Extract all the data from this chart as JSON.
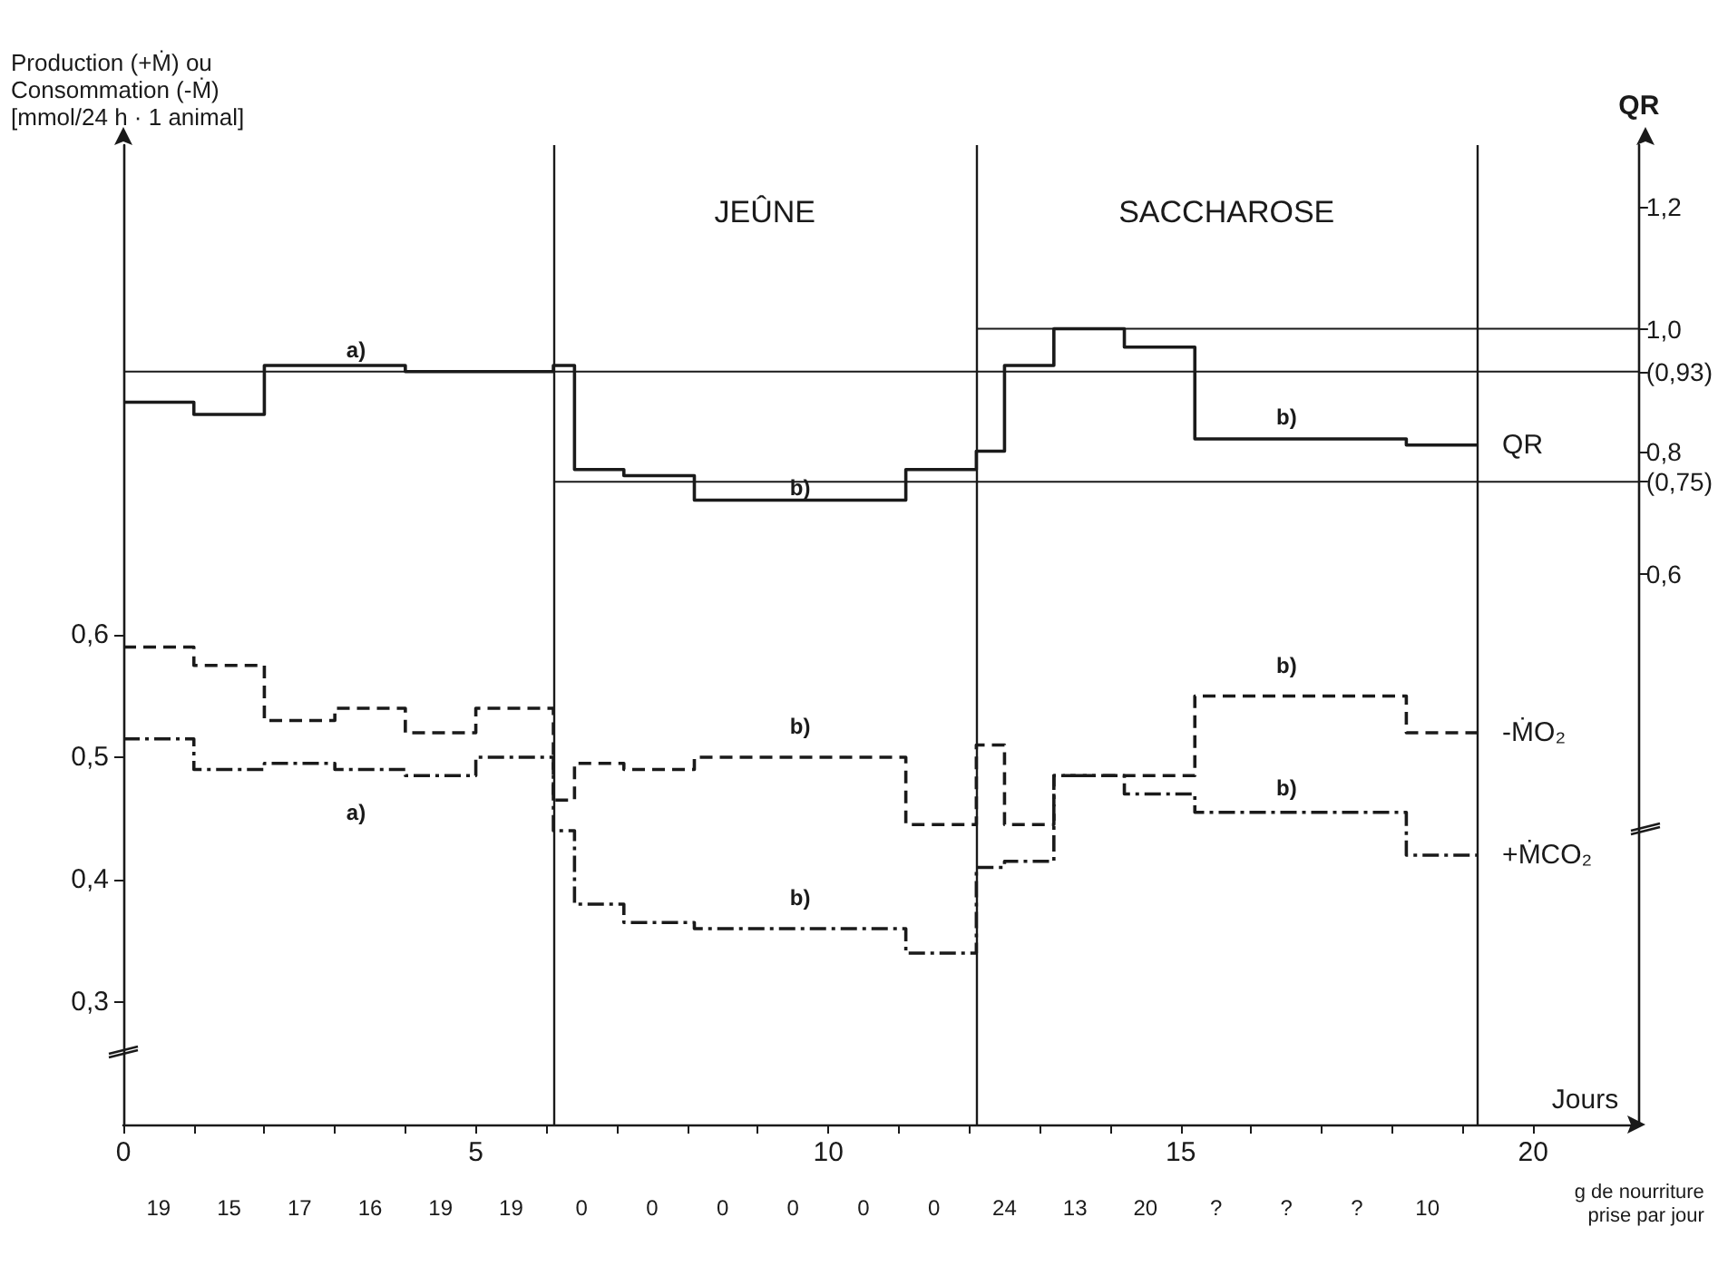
{
  "chart_data": {
    "type": "step",
    "ylabel": "Production (+Ṁ) ou\nConsommation (-Ṁ)\n[mmol/24 h · 1 animal]",
    "y2label": "QR",
    "xlabel": "Jours",
    "xlim": [
      0,
      21.5
    ],
    "xticks": [
      0,
      {
        "value": 1,
        "label": null
      },
      {
        "value": 2,
        "label": null
      },
      {
        "value": 3,
        "label": null
      },
      {
        "value": 4,
        "label": null
      },
      5,
      {
        "value": 6,
        "label": null
      },
      {
        "value": 7,
        "label": null
      },
      {
        "value": 8,
        "label": null
      },
      {
        "value": 9,
        "label": null
      },
      10,
      {
        "value": 11,
        "label": null
      },
      {
        "value": 12,
        "label": null
      },
      {
        "value": 13,
        "label": null
      },
      {
        "value": 14,
        "label": null
      },
      15,
      {
        "value": 16,
        "label": null
      },
      {
        "value": 17,
        "label": null
      },
      {
        "value": 18,
        "label": null
      },
      {
        "value": 19,
        "label": null
      },
      20
    ],
    "ylim": [
      0.2,
      1.0
    ],
    "yticks": [
      {
        "value": 0.3,
        "label": "0,3"
      },
      {
        "value": 0.4,
        "label": "0,4"
      },
      {
        "value": 0.5,
        "label": "0,5"
      },
      {
        "value": 0.6,
        "label": "0,6"
      }
    ],
    "y2lim": [
      -0.3,
      1.3
    ],
    "y2ticks": [
      {
        "value": 0.6,
        "label": "0,6"
      },
      {
        "value": 0.75,
        "label": "(0,75)"
      },
      {
        "value": 0.8,
        "label": "0,8"
      },
      {
        "value": 0.93,
        "label": "(0,93)"
      },
      {
        "value": 1.0,
        "label": "1,0"
      },
      {
        "value": 1.2,
        "label": "1,2"
      }
    ],
    "grid": false,
    "legend": false,
    "marker": "none",
    "series": [
      {
        "name": "QR",
        "color": "#1a1a1a",
        "axis": "y2",
        "line_style": "solid",
        "x": [
          0,
          1,
          2,
          3,
          4,
          5,
          6.1,
          6.4,
          7.1,
          8.1,
          11.1,
          12.1,
          12.5,
          13.2,
          14.2,
          15.2,
          18.2,
          19.2
        ],
        "values": [
          0.88,
          0.86,
          0.94,
          0.94,
          0.93,
          0.93,
          0.94,
          0.77,
          0.76,
          0.72,
          0.77,
          0.8,
          0.94,
          1.0,
          0.97,
          0.82,
          0.81,
          0.81
        ]
      },
      {
        "name": "-ṀO₂",
        "color": "#1a1a1a",
        "line_style": "dashed",
        "x": [
          0,
          1,
          2,
          3,
          4,
          5,
          6.1,
          6.4,
          7.1,
          8.1,
          11.1,
          12.1,
          12.5,
          13.2,
          14.2,
          15.2,
          18.2,
          19.2
        ],
        "values": [
          0.59,
          0.575,
          0.53,
          0.54,
          0.52,
          0.54,
          0.465,
          0.495,
          0.49,
          0.5,
          0.445,
          0.51,
          0.445,
          0.485,
          0.485,
          0.55,
          0.52,
          0.52
        ]
      },
      {
        "name": "+ṀCO₂",
        "color": "#1a1a1a",
        "line_style": "dashdot",
        "x": [
          0,
          1,
          2,
          3,
          4,
          5,
          6.1,
          6.4,
          7.1,
          8.1,
          11.1,
          12.1,
          12.5,
          13.2,
          14.2,
          15.2,
          18.2,
          19.2
        ],
        "values": [
          0.515,
          0.49,
          0.495,
          0.49,
          0.485,
          0.5,
          0.44,
          0.38,
          0.365,
          0.36,
          0.34,
          0.41,
          0.415,
          0.485,
          0.47,
          0.455,
          0.42,
          0.42
        ]
      },
      {
        "type": "line",
        "color": "#1a1a1a",
        "axis": "y2",
        "line_style": "solid",
        "x": [
          0,
          21.5
        ],
        "values": [
          0.93,
          0.93
        ]
      },
      {
        "type": "line",
        "color": "#1a1a1a",
        "axis": "y2",
        "line_style": "solid",
        "x": [
          6.1,
          21.5
        ],
        "values": [
          0.75,
          0.75
        ]
      },
      {
        "type": "line",
        "color": "#1a1a1a",
        "axis": "y2",
        "line_style": "solid",
        "x": [
          12.1,
          21.5
        ],
        "values": [
          1.0,
          1.0
        ]
      }
    ],
    "ref_lines": [
      {
        "axis": "x",
        "value": 6.1
      },
      {
        "axis": "x",
        "value": 12.1
      },
      {
        "axis": "x",
        "value": 19.2
      }
    ],
    "annotations": [
      "JEÛNE",
      "SACCHAROSE",
      "a)",
      "a)",
      "b)",
      "b)",
      "b)",
      "b)",
      "b)",
      "b)",
      "g de nourriture\nprise par jour",
      "19",
      "15",
      "17",
      "16",
      "19",
      "19",
      "0",
      "0",
      "0",
      "0",
      "0",
      "0",
      "24",
      "13",
      "20",
      "?",
      "?",
      "?",
      "10"
    ]
  }
}
